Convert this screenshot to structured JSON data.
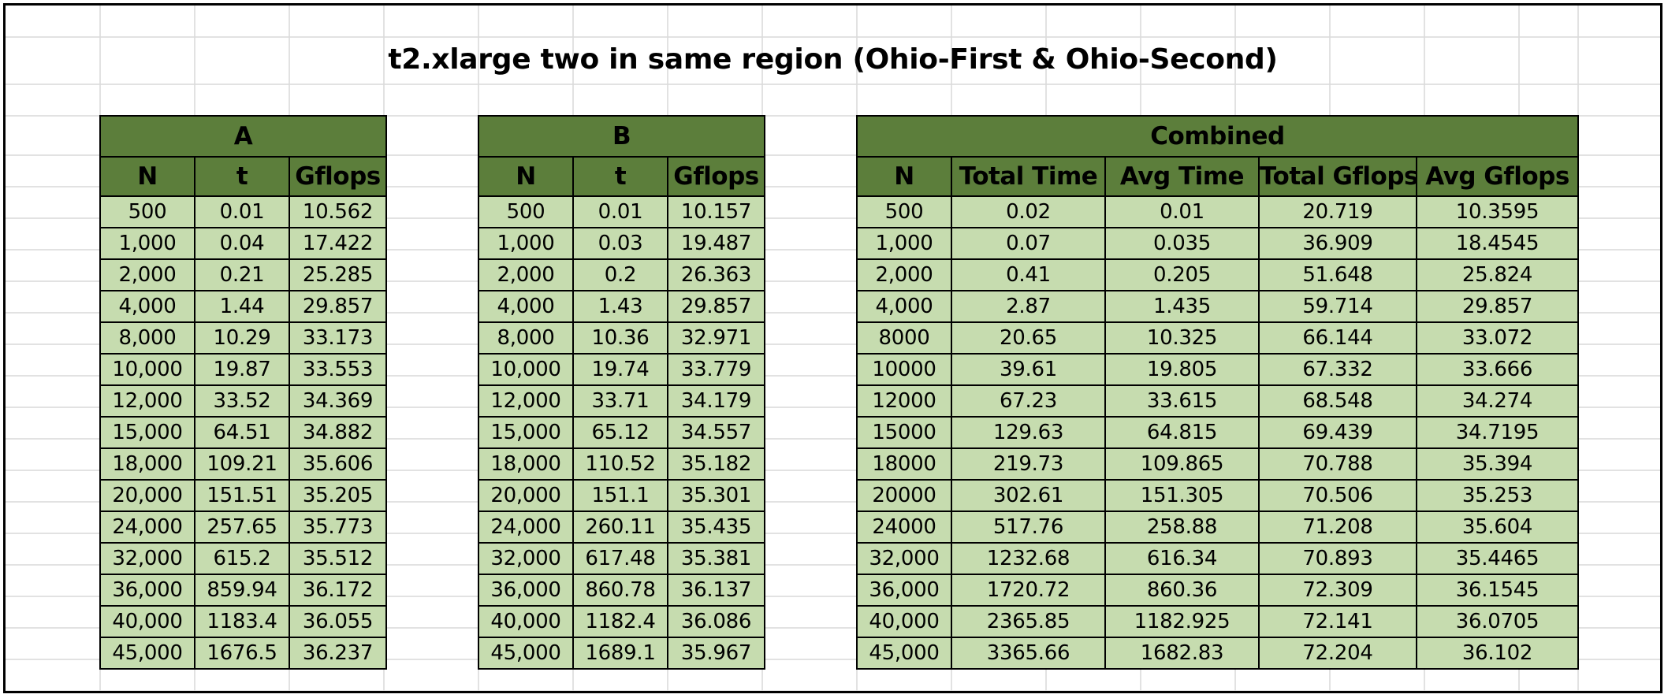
{
  "title": "t2.xlarge two in same region (Ohio-First & Ohio-Second)",
  "colors": {
    "header_bg": "#5c7e3b",
    "cell_bg": "#c6dcaf",
    "grid_line": "#d9d9d9"
  },
  "table_a": {
    "name": "A",
    "columns": [
      "N",
      "t",
      "Gflops"
    ],
    "rows": [
      [
        "500",
        "0.01",
        "10.562"
      ],
      [
        "1,000",
        "0.04",
        "17.422"
      ],
      [
        "2,000",
        "0.21",
        "25.285"
      ],
      [
        "4,000",
        "1.44",
        "29.857"
      ],
      [
        "8,000",
        "10.29",
        "33.173"
      ],
      [
        "10,000",
        "19.87",
        "33.553"
      ],
      [
        "12,000",
        "33.52",
        "34.369"
      ],
      [
        "15,000",
        "64.51",
        "34.882"
      ],
      [
        "18,000",
        "109.21",
        "35.606"
      ],
      [
        "20,000",
        "151.51",
        "35.205"
      ],
      [
        "24,000",
        "257.65",
        "35.773"
      ],
      [
        "32,000",
        "615.2",
        "35.512"
      ],
      [
        "36,000",
        "859.94",
        "36.172"
      ],
      [
        "40,000",
        "1183.4",
        "36.055"
      ],
      [
        "45,000",
        "1676.5",
        "36.237"
      ]
    ]
  },
  "table_b": {
    "name": "B",
    "columns": [
      "N",
      "t",
      "Gflops"
    ],
    "rows": [
      [
        "500",
        "0.01",
        "10.157"
      ],
      [
        "1,000",
        "0.03",
        "19.487"
      ],
      [
        "2,000",
        "0.2",
        "26.363"
      ],
      [
        "4,000",
        "1.43",
        "29.857"
      ],
      [
        "8,000",
        "10.36",
        "32.971"
      ],
      [
        "10,000",
        "19.74",
        "33.779"
      ],
      [
        "12,000",
        "33.71",
        "34.179"
      ],
      [
        "15,000",
        "65.12",
        "34.557"
      ],
      [
        "18,000",
        "110.52",
        "35.182"
      ],
      [
        "20,000",
        "151.1",
        "35.301"
      ],
      [
        "24,000",
        "260.11",
        "35.435"
      ],
      [
        "32,000",
        "617.48",
        "35.381"
      ],
      [
        "36,000",
        "860.78",
        "36.137"
      ],
      [
        "40,000",
        "1182.4",
        "36.086"
      ],
      [
        "45,000",
        "1689.1",
        "35.967"
      ]
    ]
  },
  "table_combined": {
    "name": "Combined",
    "columns": [
      "N",
      "Total Time",
      "Avg Time",
      "Total Gflops",
      "Avg Gflops"
    ],
    "rows": [
      [
        "500",
        "0.02",
        "0.01",
        "20.719",
        "10.3595"
      ],
      [
        "1,000",
        "0.07",
        "0.035",
        "36.909",
        "18.4545"
      ],
      [
        "2,000",
        "0.41",
        "0.205",
        "51.648",
        "25.824"
      ],
      [
        "4,000",
        "2.87",
        "1.435",
        "59.714",
        "29.857"
      ],
      [
        "8000",
        "20.65",
        "10.325",
        "66.144",
        "33.072"
      ],
      [
        "10000",
        "39.61",
        "19.805",
        "67.332",
        "33.666"
      ],
      [
        "12000",
        "67.23",
        "33.615",
        "68.548",
        "34.274"
      ],
      [
        "15000",
        "129.63",
        "64.815",
        "69.439",
        "34.7195"
      ],
      [
        "18000",
        "219.73",
        "109.865",
        "70.788",
        "35.394"
      ],
      [
        "20000",
        "302.61",
        "151.305",
        "70.506",
        "35.253"
      ],
      [
        "24000",
        "517.76",
        "258.88",
        "71.208",
        "35.604"
      ],
      [
        "32,000",
        "1232.68",
        "616.34",
        "70.893",
        "35.4465"
      ],
      [
        "36,000",
        "1720.72",
        "860.36",
        "72.309",
        "36.1545"
      ],
      [
        "40,000",
        "2365.85",
        "1182.925",
        "72.141",
        "36.0705"
      ],
      [
        "45,000",
        "3365.66",
        "1682.83",
        "72.204",
        "36.102"
      ]
    ]
  }
}
